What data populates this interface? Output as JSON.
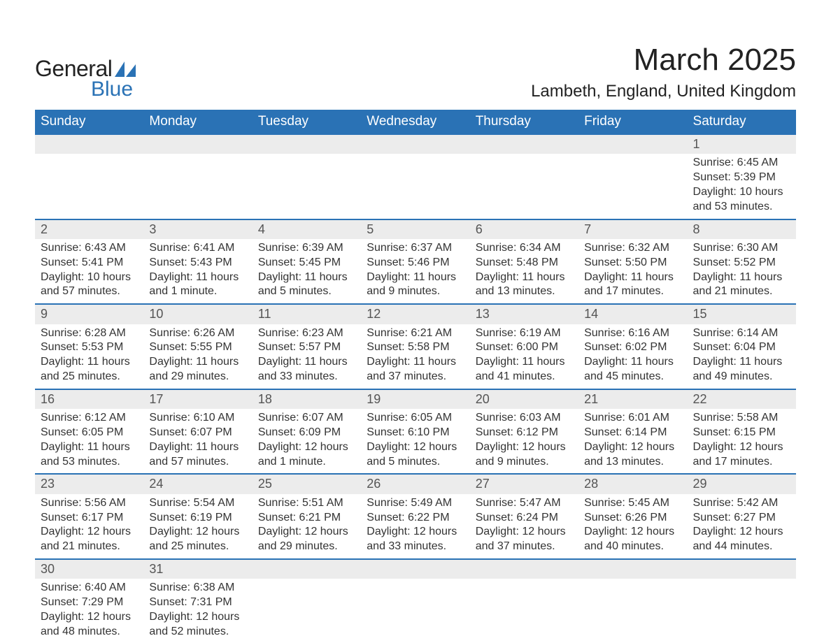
{
  "logo": {
    "word1": "General",
    "word2": "Blue",
    "flag_color": "#2a72b5"
  },
  "title": "March 2025",
  "location": "Lambeth, England, United Kingdom",
  "header_bg": "#2a72b5",
  "header_fg": "#ffffff",
  "daynum_bg": "#ececec",
  "row_border": "#2a72b5",
  "text_color": "#333333",
  "days_of_week": [
    "Sunday",
    "Monday",
    "Tuesday",
    "Wednesday",
    "Thursday",
    "Friday",
    "Saturday"
  ],
  "weeks": [
    [
      null,
      null,
      null,
      null,
      null,
      null,
      {
        "n": "1",
        "sunrise": "Sunrise: 6:45 AM",
        "sunset": "Sunset: 5:39 PM",
        "d1": "Daylight: 10 hours",
        "d2": "and 53 minutes."
      }
    ],
    [
      {
        "n": "2",
        "sunrise": "Sunrise: 6:43 AM",
        "sunset": "Sunset: 5:41 PM",
        "d1": "Daylight: 10 hours",
        "d2": "and 57 minutes."
      },
      {
        "n": "3",
        "sunrise": "Sunrise: 6:41 AM",
        "sunset": "Sunset: 5:43 PM",
        "d1": "Daylight: 11 hours",
        "d2": "and 1 minute."
      },
      {
        "n": "4",
        "sunrise": "Sunrise: 6:39 AM",
        "sunset": "Sunset: 5:45 PM",
        "d1": "Daylight: 11 hours",
        "d2": "and 5 minutes."
      },
      {
        "n": "5",
        "sunrise": "Sunrise: 6:37 AM",
        "sunset": "Sunset: 5:46 PM",
        "d1": "Daylight: 11 hours",
        "d2": "and 9 minutes."
      },
      {
        "n": "6",
        "sunrise": "Sunrise: 6:34 AM",
        "sunset": "Sunset: 5:48 PM",
        "d1": "Daylight: 11 hours",
        "d2": "and 13 minutes."
      },
      {
        "n": "7",
        "sunrise": "Sunrise: 6:32 AM",
        "sunset": "Sunset: 5:50 PM",
        "d1": "Daylight: 11 hours",
        "d2": "and 17 minutes."
      },
      {
        "n": "8",
        "sunrise": "Sunrise: 6:30 AM",
        "sunset": "Sunset: 5:52 PM",
        "d1": "Daylight: 11 hours",
        "d2": "and 21 minutes."
      }
    ],
    [
      {
        "n": "9",
        "sunrise": "Sunrise: 6:28 AM",
        "sunset": "Sunset: 5:53 PM",
        "d1": "Daylight: 11 hours",
        "d2": "and 25 minutes."
      },
      {
        "n": "10",
        "sunrise": "Sunrise: 6:26 AM",
        "sunset": "Sunset: 5:55 PM",
        "d1": "Daylight: 11 hours",
        "d2": "and 29 minutes."
      },
      {
        "n": "11",
        "sunrise": "Sunrise: 6:23 AM",
        "sunset": "Sunset: 5:57 PM",
        "d1": "Daylight: 11 hours",
        "d2": "and 33 minutes."
      },
      {
        "n": "12",
        "sunrise": "Sunrise: 6:21 AM",
        "sunset": "Sunset: 5:58 PM",
        "d1": "Daylight: 11 hours",
        "d2": "and 37 minutes."
      },
      {
        "n": "13",
        "sunrise": "Sunrise: 6:19 AM",
        "sunset": "Sunset: 6:00 PM",
        "d1": "Daylight: 11 hours",
        "d2": "and 41 minutes."
      },
      {
        "n": "14",
        "sunrise": "Sunrise: 6:16 AM",
        "sunset": "Sunset: 6:02 PM",
        "d1": "Daylight: 11 hours",
        "d2": "and 45 minutes."
      },
      {
        "n": "15",
        "sunrise": "Sunrise: 6:14 AM",
        "sunset": "Sunset: 6:04 PM",
        "d1": "Daylight: 11 hours",
        "d2": "and 49 minutes."
      }
    ],
    [
      {
        "n": "16",
        "sunrise": "Sunrise: 6:12 AM",
        "sunset": "Sunset: 6:05 PM",
        "d1": "Daylight: 11 hours",
        "d2": "and 53 minutes."
      },
      {
        "n": "17",
        "sunrise": "Sunrise: 6:10 AM",
        "sunset": "Sunset: 6:07 PM",
        "d1": "Daylight: 11 hours",
        "d2": "and 57 minutes."
      },
      {
        "n": "18",
        "sunrise": "Sunrise: 6:07 AM",
        "sunset": "Sunset: 6:09 PM",
        "d1": "Daylight: 12 hours",
        "d2": "and 1 minute."
      },
      {
        "n": "19",
        "sunrise": "Sunrise: 6:05 AM",
        "sunset": "Sunset: 6:10 PM",
        "d1": "Daylight: 12 hours",
        "d2": "and 5 minutes."
      },
      {
        "n": "20",
        "sunrise": "Sunrise: 6:03 AM",
        "sunset": "Sunset: 6:12 PM",
        "d1": "Daylight: 12 hours",
        "d2": "and 9 minutes."
      },
      {
        "n": "21",
        "sunrise": "Sunrise: 6:01 AM",
        "sunset": "Sunset: 6:14 PM",
        "d1": "Daylight: 12 hours",
        "d2": "and 13 minutes."
      },
      {
        "n": "22",
        "sunrise": "Sunrise: 5:58 AM",
        "sunset": "Sunset: 6:15 PM",
        "d1": "Daylight: 12 hours",
        "d2": "and 17 minutes."
      }
    ],
    [
      {
        "n": "23",
        "sunrise": "Sunrise: 5:56 AM",
        "sunset": "Sunset: 6:17 PM",
        "d1": "Daylight: 12 hours",
        "d2": "and 21 minutes."
      },
      {
        "n": "24",
        "sunrise": "Sunrise: 5:54 AM",
        "sunset": "Sunset: 6:19 PM",
        "d1": "Daylight: 12 hours",
        "d2": "and 25 minutes."
      },
      {
        "n": "25",
        "sunrise": "Sunrise: 5:51 AM",
        "sunset": "Sunset: 6:21 PM",
        "d1": "Daylight: 12 hours",
        "d2": "and 29 minutes."
      },
      {
        "n": "26",
        "sunrise": "Sunrise: 5:49 AM",
        "sunset": "Sunset: 6:22 PM",
        "d1": "Daylight: 12 hours",
        "d2": "and 33 minutes."
      },
      {
        "n": "27",
        "sunrise": "Sunrise: 5:47 AM",
        "sunset": "Sunset: 6:24 PM",
        "d1": "Daylight: 12 hours",
        "d2": "and 37 minutes."
      },
      {
        "n": "28",
        "sunrise": "Sunrise: 5:45 AM",
        "sunset": "Sunset: 6:26 PM",
        "d1": "Daylight: 12 hours",
        "d2": "and 40 minutes."
      },
      {
        "n": "29",
        "sunrise": "Sunrise: 5:42 AM",
        "sunset": "Sunset: 6:27 PM",
        "d1": "Daylight: 12 hours",
        "d2": "and 44 minutes."
      }
    ],
    [
      {
        "n": "30",
        "sunrise": "Sunrise: 6:40 AM",
        "sunset": "Sunset: 7:29 PM",
        "d1": "Daylight: 12 hours",
        "d2": "and 48 minutes."
      },
      {
        "n": "31",
        "sunrise": "Sunrise: 6:38 AM",
        "sunset": "Sunset: 7:31 PM",
        "d1": "Daylight: 12 hours",
        "d2": "and 52 minutes."
      },
      null,
      null,
      null,
      null,
      null
    ]
  ]
}
